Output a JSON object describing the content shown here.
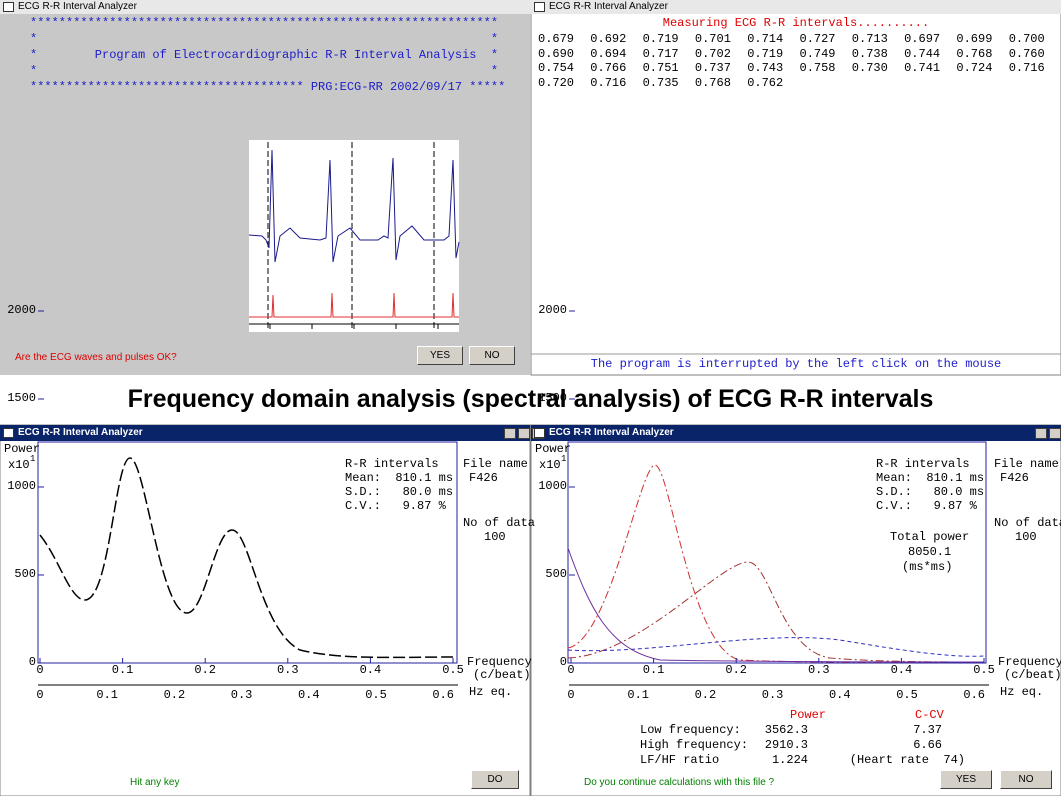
{
  "heading": "Frequency domain analysis (spectral analysis) of ECG R-R intervals",
  "windows": [
    {
      "title": "ECG R-R Interval Analyzer",
      "banner": [
        "*****************************************************************",
        "*                                                               *",
        "*        Program of Electrocardiographic R-R Interval Analysis  *",
        "*                                                               *",
        "************************************** PRG:ECG-RR 2002/09/17 *****"
      ],
      "prompt": "Are the ECG waves and pulses OK?",
      "buttons": [
        "YES",
        "NO"
      ]
    },
    {
      "title": "ECG R-R Interval Analyzer",
      "header": "Measuring ECG R-R intervals..........",
      "rows": [
        [
          "0.679",
          "0.692",
          "0.719",
          "0.701",
          "0.714",
          "0.727",
          "0.713",
          "0.697",
          "0.699",
          "0.700"
        ],
        [
          "0.690",
          "0.694",
          "0.717",
          "0.702",
          "0.719",
          "0.749",
          "0.738",
          "0.744",
          "0.768",
          "0.760"
        ],
        [
          "0.754",
          "0.766",
          "0.751",
          "0.737",
          "0.743",
          "0.758",
          "0.730",
          "0.741",
          "0.724",
          "0.716"
        ],
        [
          "0.720",
          "0.716",
          "0.735",
          "0.768",
          "0.762"
        ]
      ],
      "footer": "The program is interrupted by the left click on the mouse"
    },
    {
      "title": "ECG R-R Interval Analyzer",
      "plot": {
        "ylabel": "Power",
        "yscale": "x10",
        "yexp": "1",
        "yticks": [
          "0",
          "500",
          "1000",
          "1500",
          "2000"
        ],
        "xticks": [
          "0",
          "0.1",
          "0.2",
          "0.3",
          "0.4",
          "0.5"
        ],
        "xticks2": [
          "0",
          "0.1",
          "0.2",
          "0.3",
          "0.4",
          "0.5",
          "0.6"
        ],
        "xlabel": [
          "Frequency",
          "(c/beat)"
        ],
        "xlabel2": "Hz eq."
      },
      "stats": {
        "title": "R-R intervals",
        "rows": [
          "Mean:  810.1 ms",
          "S.D.:   80.0 ms",
          "C.V.:   9.87 %"
        ]
      },
      "file": {
        "label": "File name",
        "value": "F426",
        "count_label": "No of data",
        "count": "100"
      },
      "footer": "Hit any key",
      "buttons": [
        "DO"
      ]
    },
    {
      "title": "ECG R-R Interval Analyzer",
      "plot": {
        "ylabel": "Power",
        "yscale": "x10",
        "yexp": "1",
        "yticks": [
          "0",
          "500",
          "1000",
          "1500",
          "2000"
        ],
        "xticks": [
          "0",
          "0.1",
          "0.2",
          "0.3",
          "0.4",
          "0.5"
        ],
        "xticks2": [
          "0",
          "0.1",
          "0.2",
          "0.3",
          "0.4",
          "0.5",
          "0.6"
        ],
        "xlabel": [
          "Frequency",
          "(c/beat)"
        ],
        "xlabel2": "Hz eq."
      },
      "stats": {
        "title": "R-R intervals",
        "rows": [
          "Mean:  810.1 ms",
          "S.D.:   80.0 ms",
          "C.V.:   9.87 %"
        ]
      },
      "file": {
        "label": "File name",
        "value": "F426",
        "count_label": "No of data",
        "count": "100"
      },
      "total": {
        "label": "Total power",
        "value": "8050.1",
        "unit": "(ms*ms)"
      },
      "table": {
        "columns": [
          "Power",
          "C-CV"
        ],
        "rows": [
          [
            "Low frequency:",
            "3562.3",
            "7.37"
          ],
          [
            "High frequency:",
            "2910.3",
            "6.66"
          ],
          [
            "LF/HF ratio",
            "1.224",
            "(Heart rate  74)"
          ]
        ]
      },
      "footer": "Do you continue calculations with this file ?",
      "buttons": [
        "YES",
        "NO"
      ]
    }
  ]
}
